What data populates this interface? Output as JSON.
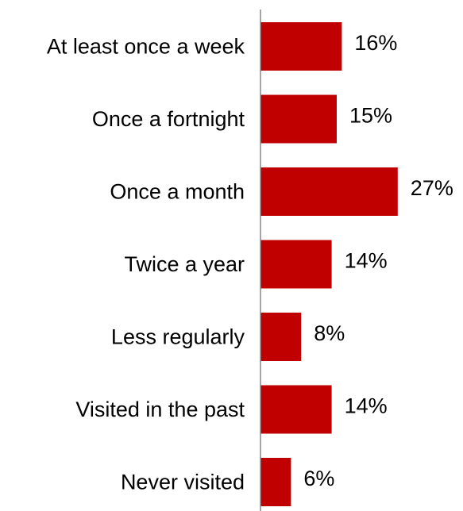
{
  "chart_data": {
    "type": "bar",
    "orientation": "horizontal",
    "categories": [
      "At least once a week",
      "Once a fortnight",
      "Once a month",
      "Twice a year",
      "Less regularly",
      "Visited in the past",
      "Never visited"
    ],
    "values": [
      16,
      15,
      27,
      14,
      8,
      14,
      6
    ],
    "value_labels": [
      "16%",
      "15%",
      "27%",
      "14%",
      "8%",
      "14%",
      "6%"
    ],
    "unit": "%",
    "bar_color": "#c00000",
    "axis_color": "#888888",
    "grid": false,
    "legend": "none",
    "title": "",
    "xlabel": "",
    "ylabel": ""
  }
}
